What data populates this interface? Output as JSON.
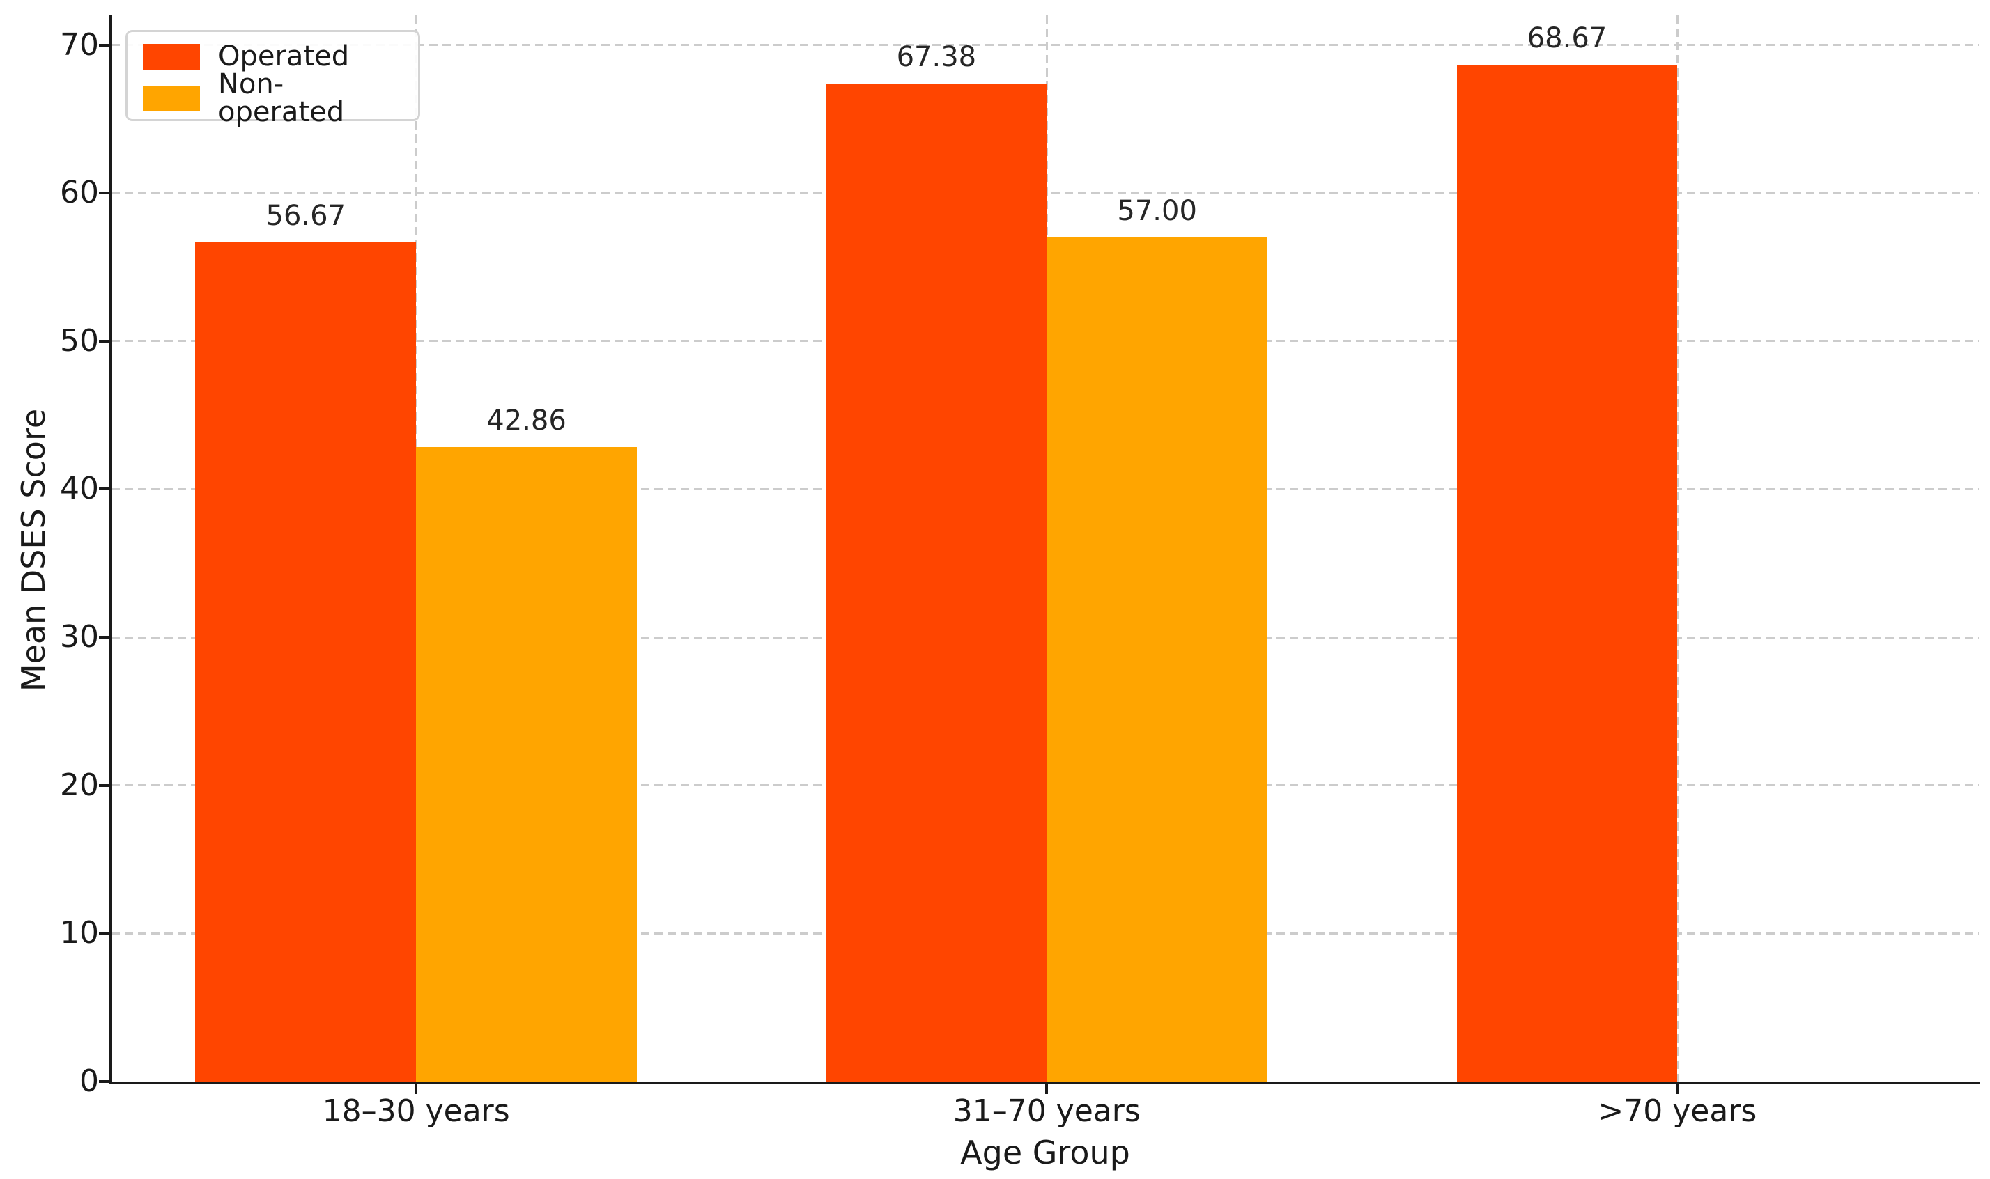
{
  "chart_data": {
    "type": "bar",
    "title": "",
    "xlabel": "Age Group",
    "ylabel": "Mean DSES Score",
    "categories": [
      "18–30 years",
      "31–70 years",
      ">70 years"
    ],
    "series": [
      {
        "name": "Operated",
        "color": "#FF4500",
        "values": [
          56.67,
          67.38,
          68.67
        ],
        "value_labels": [
          "56.67",
          "67.38",
          "68.67"
        ]
      },
      {
        "name": "Non-operated",
        "color": "#FFA500",
        "values": [
          42.86,
          57.0,
          null
        ],
        "value_labels": [
          "42.86",
          "57.00",
          null
        ]
      }
    ],
    "y_ticks": [
      0,
      10,
      20,
      30,
      40,
      50,
      60,
      70
    ],
    "y_tick_labels": [
      "0",
      "10",
      "20",
      "30",
      "40",
      "50",
      "60",
      "70"
    ],
    "ylim": [
      0,
      72
    ],
    "xlim": [
      -0.483,
      2.478
    ],
    "bar_width": 0.35,
    "grid": "both-dashed",
    "grid_color": "#cccccc",
    "spine_color": "#1a1a1a",
    "legend_position": "upper left",
    "background_color": "#ffffff"
  }
}
